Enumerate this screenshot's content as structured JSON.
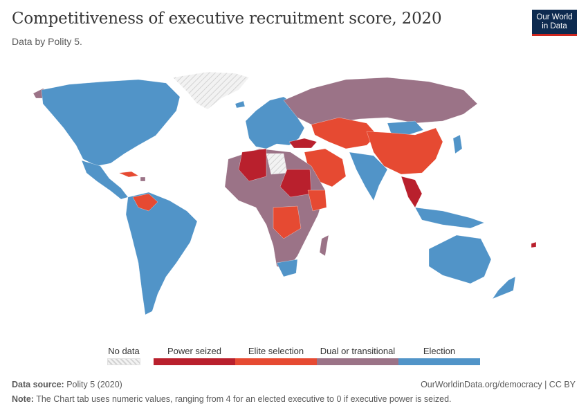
{
  "header": {
    "title": "Competitiveness of executive recruitment score, 2020",
    "subtitle": "Data by Polity 5."
  },
  "logo": {
    "line1": "Our World",
    "line2": "in Data"
  },
  "legend": {
    "no_data": "No data",
    "categories": [
      {
        "label": "Power seized",
        "color": "#b9202d"
      },
      {
        "label": "Elite selection",
        "color": "#e64a32"
      },
      {
        "label": "Dual or transitional",
        "color": "#9b7387"
      },
      {
        "label": "Election",
        "color": "#5194c8"
      }
    ]
  },
  "footer": {
    "source_label": "Data source:",
    "source_value": "Polity 5 (2020)",
    "url": "OurWorldinData.org/democracy | CC BY",
    "note_label": "Note:",
    "note_value": "The Chart tab uses numeric values, ranging from 4 for an elected executive to 0 if executive power is seized."
  },
  "colors": {
    "power_seized": "#b9202d",
    "elite_selection": "#e64a32",
    "dual_or_transitional": "#9b7387",
    "election": "#5194c8",
    "no_data": "#e6e6e6"
  }
}
